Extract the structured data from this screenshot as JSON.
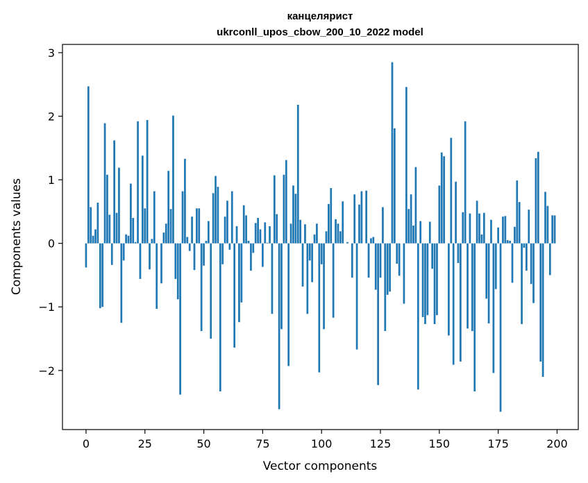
{
  "chart_data": {
    "type": "bar",
    "title_line1": "канцелярист",
    "title_line2": "ukrconll_upos_cbow_200_10_2022 model",
    "xlabel": "Vector components",
    "ylabel": "Components values",
    "xlim": [
      -10,
      209
    ],
    "ylim": [
      -2.93,
      3.13
    ],
    "xticks": [
      0,
      25,
      50,
      75,
      100,
      125,
      150,
      175,
      200
    ],
    "yticks": [
      -2,
      -1,
      0,
      1,
      2,
      3
    ],
    "ytick_labels": [
      "−2",
      "−1",
      "0",
      "1",
      "2",
      "3"
    ],
    "grid": false,
    "bar_color": "#1f77b4",
    "x": [
      0,
      1,
      2,
      3,
      4,
      5,
      6,
      7,
      8,
      9,
      10,
      11,
      12,
      13,
      14,
      15,
      16,
      17,
      18,
      19,
      20,
      21,
      22,
      23,
      24,
      25,
      26,
      27,
      28,
      29,
      30,
      31,
      32,
      33,
      34,
      35,
      36,
      37,
      38,
      39,
      40,
      41,
      42,
      43,
      44,
      45,
      46,
      47,
      48,
      49,
      50,
      51,
      52,
      53,
      54,
      55,
      56,
      57,
      58,
      59,
      60,
      61,
      62,
      63,
      64,
      65,
      66,
      67,
      68,
      69,
      70,
      71,
      72,
      73,
      74,
      75,
      76,
      77,
      78,
      79,
      80,
      81,
      82,
      83,
      84,
      85,
      86,
      87,
      88,
      89,
      90,
      91,
      92,
      93,
      94,
      95,
      96,
      97,
      98,
      99,
      100,
      101,
      102,
      103,
      104,
      105,
      106,
      107,
      108,
      109,
      110,
      111,
      112,
      113,
      114,
      115,
      116,
      117,
      118,
      119,
      120,
      121,
      122,
      123,
      124,
      125,
      126,
      127,
      128,
      129,
      130,
      131,
      132,
      133,
      134,
      135,
      136,
      137,
      138,
      139,
      140,
      141,
      142,
      143,
      144,
      145,
      146,
      147,
      148,
      149,
      150,
      151,
      152,
      153,
      154,
      155,
      156,
      157,
      158,
      159,
      160,
      161,
      162,
      163,
      164,
      165,
      166,
      167,
      168,
      169,
      170,
      171,
      172,
      173,
      174,
      175,
      176,
      177,
      178,
      179,
      180,
      181,
      182,
      183,
      184,
      185,
      186,
      187,
      188,
      189,
      190,
      191,
      192,
      193,
      194,
      195,
      196,
      197,
      198,
      199
    ],
    "values": [
      -0.38,
      2.47,
      0.57,
      0.12,
      0.22,
      0.64,
      -1.02,
      -1.0,
      1.89,
      1.08,
      0.45,
      -0.34,
      1.62,
      0.48,
      1.19,
      -1.25,
      -0.27,
      0.14,
      0.12,
      0.94,
      0.4,
      0.02,
      1.92,
      -0.56,
      1.38,
      0.55,
      1.94,
      -0.41,
      0.07,
      0.82,
      -1.03,
      0.0,
      -0.63,
      0.17,
      0.31,
      1.14,
      0.54,
      2.01,
      -0.56,
      -0.88,
      -2.38,
      0.82,
      1.33,
      0.1,
      -0.12,
      0.42,
      -0.42,
      0.55,
      0.55,
      -1.38,
      -0.35,
      0.04,
      0.35,
      -1.5,
      0.79,
      1.06,
      0.89,
      -2.33,
      -0.33,
      0.42,
      0.67,
      -0.1,
      0.82,
      -1.64,
      0.27,
      -1.24,
      -0.93,
      0.6,
      0.44,
      0.04,
      -0.43,
      -0.15,
      0.32,
      0.4,
      0.22,
      -0.37,
      0.33,
      0.01,
      0.27,
      -1.11,
      1.07,
      0.46,
      -2.61,
      -1.35,
      1.08,
      1.31,
      -1.93,
      0.31,
      0.91,
      0.78,
      2.18,
      0.37,
      -0.68,
      0.3,
      -1.11,
      -0.27,
      -0.61,
      0.14,
      0.31,
      -2.03,
      -0.33,
      -1.35,
      0.19,
      0.62,
      0.87,
      -1.17,
      0.38,
      0.31,
      0.19,
      0.66,
      0.0,
      0.02,
      0.0,
      -0.54,
      0.77,
      -1.67,
      0.61,
      0.82,
      0.0,
      0.83,
      -0.54,
      0.08,
      0.1,
      -0.73,
      -2.23,
      -0.54,
      0.57,
      -1.38,
      -0.81,
      -0.76,
      2.85,
      1.81,
      -0.32,
      -0.51,
      0.0,
      -0.95,
      2.46,
      0.54,
      0.77,
      0.28,
      1.2,
      -2.3,
      0.35,
      -1.16,
      -1.27,
      -1.13,
      0.34,
      -0.4,
      -1.27,
      -1.13,
      0.91,
      1.43,
      1.37,
      0.0,
      -1.45,
      1.66,
      -1.91,
      0.97,
      -0.31,
      -1.86,
      0.49,
      1.92,
      -1.34,
      0.47,
      -1.38,
      -2.33,
      0.67,
      0.47,
      0.14,
      0.48,
      -0.87,
      -1.26,
      0.37,
      -2.04,
      -0.72,
      0.25,
      -2.65,
      0.42,
      0.43,
      0.05,
      0.04,
      -0.62,
      0.26,
      0.99,
      0.65,
      -1.27,
      -0.07,
      -0.43,
      0.53,
      -0.64,
      -0.94,
      1.34,
      1.44,
      -1.86,
      -2.1,
      0.81,
      0.59,
      -0.5,
      0.44,
      0.44
    ]
  }
}
